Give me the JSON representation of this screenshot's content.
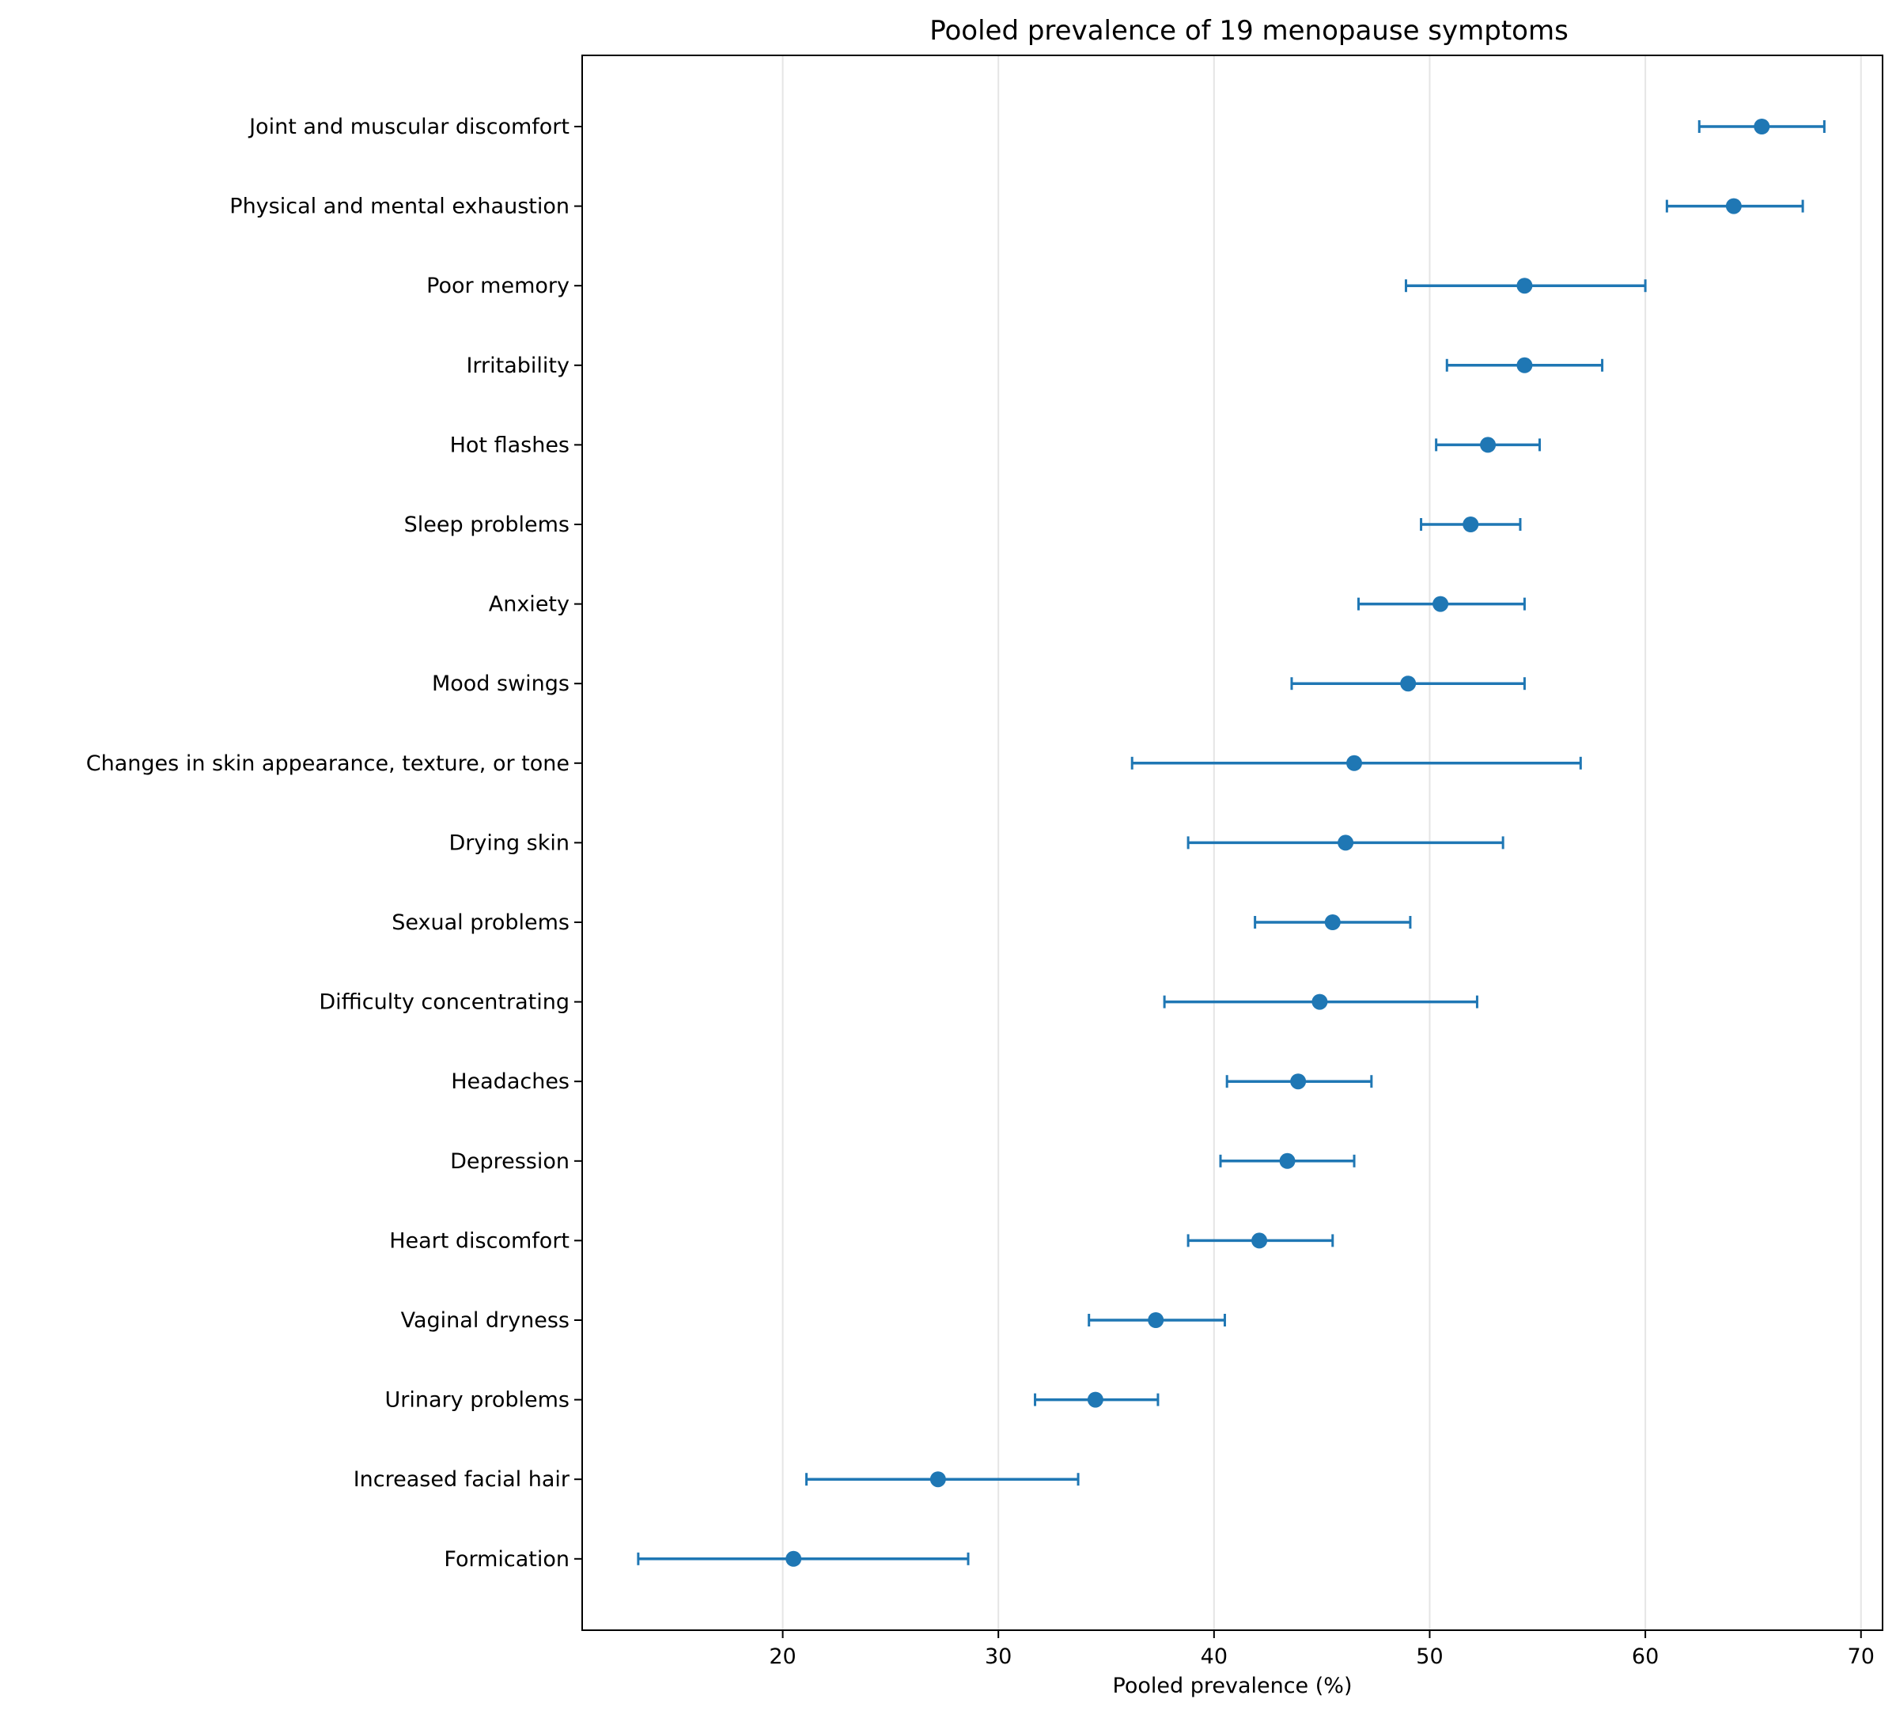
{
  "chart_data": {
    "type": "scatter",
    "title": "Pooled prevalence of 19 menopause symptoms",
    "xlabel": "Pooled prevalence (%)",
    "ylabel": "",
    "xlim": [
      10.7,
      71.0
    ],
    "xticks": [
      20,
      30,
      40,
      50,
      60,
      70
    ],
    "grid": "vertical",
    "color": "#1f77b4",
    "symptoms": [
      {
        "label": "Joint and muscular discomfort",
        "value": 65.4,
        "lower": 62.5,
        "upper": 68.3
      },
      {
        "label": "Physical and mental exhaustion",
        "value": 64.1,
        "lower": 61.0,
        "upper": 67.3
      },
      {
        "label": "Poor memory",
        "value": 54.4,
        "lower": 48.9,
        "upper": 60.0
      },
      {
        "label": "Irritability",
        "value": 54.4,
        "lower": 50.8,
        "upper": 58.0
      },
      {
        "label": "Hot flashes",
        "value": 52.7,
        "lower": 50.3,
        "upper": 55.1
      },
      {
        "label": "Sleep problems",
        "value": 51.9,
        "lower": 49.6,
        "upper": 54.2
      },
      {
        "label": "Anxiety",
        "value": 50.5,
        "lower": 46.7,
        "upper": 54.4
      },
      {
        "label": "Mood swings",
        "value": 49.0,
        "lower": 43.6,
        "upper": 54.4
      },
      {
        "label": "Changes in skin appearance, texture, or tone",
        "value": 46.5,
        "lower": 36.2,
        "upper": 57.0
      },
      {
        "label": "Drying skin",
        "value": 46.1,
        "lower": 38.8,
        "upper": 53.4
      },
      {
        "label": "Sexual problems",
        "value": 45.5,
        "lower": 41.9,
        "upper": 49.1
      },
      {
        "label": "Difficulty concentrating",
        "value": 44.9,
        "lower": 37.7,
        "upper": 52.2
      },
      {
        "label": "Headaches",
        "value": 43.9,
        "lower": 40.6,
        "upper": 47.3
      },
      {
        "label": "Depression",
        "value": 43.4,
        "lower": 40.3,
        "upper": 46.5
      },
      {
        "label": "Heart discomfort",
        "value": 42.1,
        "lower": 38.8,
        "upper": 45.5
      },
      {
        "label": "Vaginal dryness",
        "value": 37.3,
        "lower": 34.2,
        "upper": 40.5
      },
      {
        "label": "Urinary problems",
        "value": 34.5,
        "lower": 31.7,
        "upper": 37.4
      },
      {
        "label": "Increased facial hair",
        "value": 27.2,
        "lower": 21.1,
        "upper": 33.7
      },
      {
        "label": "Formication",
        "value": 20.5,
        "lower": 13.3,
        "upper": 28.6
      }
    ]
  }
}
